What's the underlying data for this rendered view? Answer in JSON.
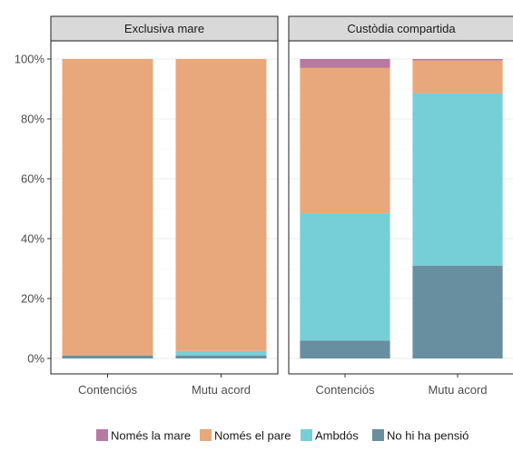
{
  "chart_data": {
    "type": "bar",
    "stacked": true,
    "facets": [
      "Exclusiva mare",
      "Custòdia compartida"
    ],
    "categories": [
      "Contenciós",
      "Mutu acord"
    ],
    "ylim": [
      0,
      1
    ],
    "yticks": [
      0,
      0.2,
      0.4,
      0.6,
      0.8,
      1.0
    ],
    "ytick_labels": [
      "0%",
      "20%",
      "40%",
      "60%",
      "80%",
      "100%"
    ],
    "legend_position": "bottom",
    "series": [
      {
        "name": "Només la mare",
        "color": "#b87aa1",
        "values": {
          "Exclusiva mare": [
            0.0,
            0.0
          ],
          "Custòdia compartida": [
            0.03,
            0.005
          ]
        }
      },
      {
        "name": "Només el pare",
        "color": "#e8a87c",
        "values": {
          "Exclusiva mare": [
            0.99,
            0.975
          ],
          "Custòdia compartida": [
            0.485,
            0.11
          ]
        }
      },
      {
        "name": "Ambdós",
        "color": "#76cfd6",
        "values": {
          "Exclusiva mare": [
            0.0,
            0.015
          ],
          "Custòdia compartida": [
            0.425,
            0.575
          ]
        }
      },
      {
        "name": "No hi ha pensió",
        "color": "#688fa0",
        "values": {
          "Exclusiva mare": [
            0.01,
            0.01
          ],
          "Custòdia compartida": [
            0.06,
            0.31
          ]
        }
      }
    ]
  }
}
